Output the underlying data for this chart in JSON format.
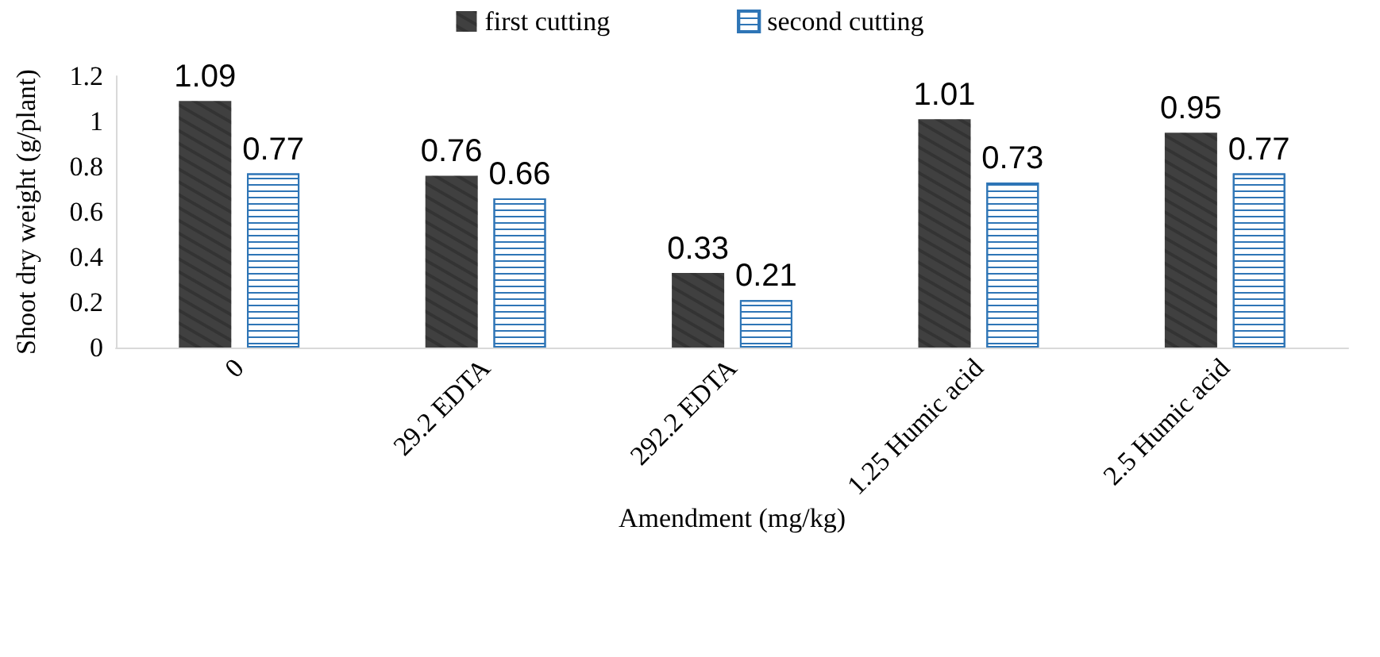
{
  "chart_data": {
    "type": "bar",
    "categories": [
      "0",
      "29.2 EDTA",
      "292.2 EDTA",
      "1.25 Humic acid",
      "2.5 Humic acid"
    ],
    "series": [
      {
        "name": "first cutting",
        "color": "#404040",
        "values": [
          1.09,
          0.76,
          0.33,
          1.01,
          0.95
        ]
      },
      {
        "name": "second cutting",
        "color": "#2e75b6",
        "values": [
          0.77,
          0.66,
          0.21,
          0.73,
          0.77
        ]
      }
    ],
    "xlabel": "Amendment (mg/kg)",
    "ylabel": "Shoot dry weight (g/plant)",
    "ylim": [
      0,
      1.2
    ],
    "yticks": [
      0,
      0.2,
      0.4,
      0.6,
      0.8,
      1,
      1.2
    ],
    "grid": false,
    "legend": "top",
    "data_labels": true
  }
}
